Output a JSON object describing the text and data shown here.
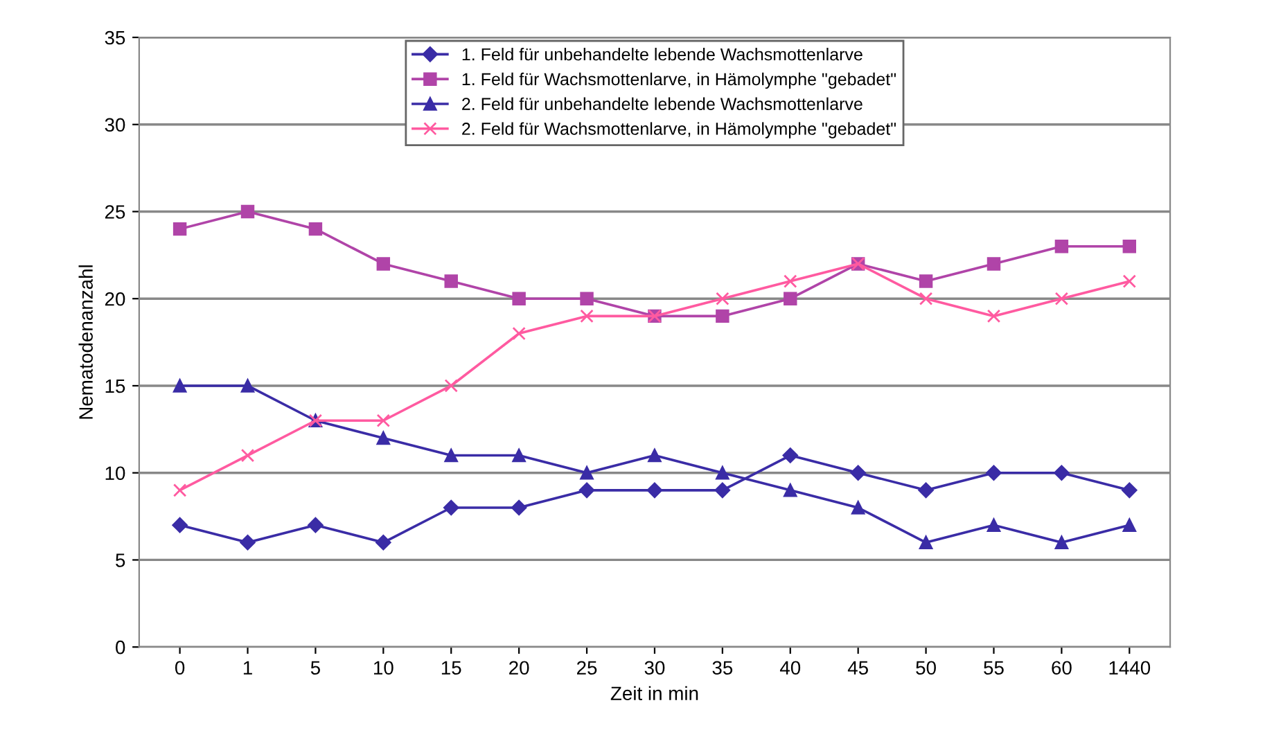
{
  "chart_data": {
    "type": "line",
    "xlabel": "Zeit in min",
    "ylabel": "Nematodenanzahl",
    "categories": [
      "0",
      "1",
      "5",
      "10",
      "15",
      "20",
      "25",
      "30",
      "35",
      "40",
      "45",
      "50",
      "55",
      "60",
      "1440"
    ],
    "series": [
      {
        "name": "1. Feld für unbehandelte lebende Wachsmottenlarve",
        "color": "#3a2ca6",
        "marker": "diamond",
        "values": [
          7,
          6,
          7,
          6,
          8,
          8,
          9,
          9,
          9,
          11,
          10,
          9,
          10,
          10,
          9
        ]
      },
      {
        "name": "1. Feld für Wachsmottenlarve, in Hämolymphe \"gebadet\"",
        "color": "#b044a8",
        "marker": "square",
        "values": [
          24,
          25,
          24,
          22,
          21,
          20,
          20,
          19,
          19,
          20,
          22,
          21,
          22,
          23,
          23
        ]
      },
      {
        "name": "2. Feld für unbehandelte lebende Wachsmottenlarve",
        "color": "#3a2ca6",
        "marker": "triangle",
        "values": [
          15,
          15,
          13,
          12,
          11,
          11,
          10,
          11,
          10,
          9,
          8,
          6,
          7,
          6,
          7
        ]
      },
      {
        "name": "2. Feld für Wachsmottenlarve, in Hämolymphe \"gebadet\"",
        "color": "#ff5aa0",
        "marker": "cross",
        "values": [
          9,
          11,
          13,
          13,
          15,
          18,
          19,
          19,
          20,
          21,
          22,
          20,
          19,
          20,
          21
        ]
      }
    ],
    "ylim": [
      0,
      35
    ],
    "yticks": [
      0,
      5,
      10,
      15,
      20,
      25,
      30,
      35
    ],
    "grid": "y",
    "legend": "top",
    "line_style": "solid"
  }
}
